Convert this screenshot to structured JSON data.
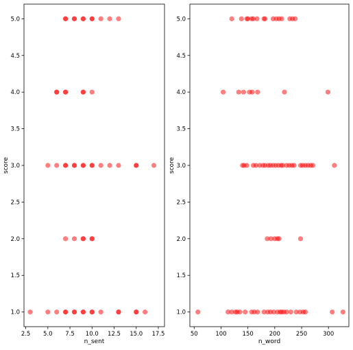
{
  "figure": {
    "background": "#ffffff",
    "marker_color": "#ff0000"
  },
  "chart_data": [
    {
      "type": "scatter",
      "title": "",
      "xlabel": "n_sent",
      "ylabel": "score",
      "xlim": [
        2.3,
        18.2
      ],
      "ylim": [
        0.8,
        5.2
      ],
      "xticks": [
        2.5,
        5.0,
        7.5,
        10.0,
        12.5,
        15.0,
        17.5
      ],
      "xtick_labels": [
        "2.5",
        "5.0",
        "7.5",
        "10.0",
        "12.5",
        "15.0",
        "17.5"
      ],
      "yticks": [
        1.0,
        1.5,
        2.0,
        2.5,
        3.0,
        3.5,
        4.0,
        4.5,
        5.0
      ],
      "ytick_labels": [
        "1.0",
        "1.5",
        "2.0",
        "2.5",
        "3.0",
        "3.5",
        "4.0",
        "4.5",
        "5.0"
      ],
      "grid": false,
      "marker_alpha": 0.5,
      "points": [
        {
          "x": 7,
          "y": 5
        },
        {
          "x": 7,
          "y": 5
        },
        {
          "x": 8,
          "y": 5
        },
        {
          "x": 8,
          "y": 5
        },
        {
          "x": 9,
          "y": 5
        },
        {
          "x": 9,
          "y": 5
        },
        {
          "x": 10,
          "y": 5
        },
        {
          "x": 10,
          "y": 5
        },
        {
          "x": 11,
          "y": 5
        },
        {
          "x": 12,
          "y": 5
        },
        {
          "x": 13,
          "y": 5
        },
        {
          "x": 6,
          "y": 4
        },
        {
          "x": 6,
          "y": 4
        },
        {
          "x": 7,
          "y": 4
        },
        {
          "x": 7,
          "y": 4
        },
        {
          "x": 9,
          "y": 4
        },
        {
          "x": 9,
          "y": 4
        },
        {
          "x": 10,
          "y": 4
        },
        {
          "x": 5,
          "y": 3
        },
        {
          "x": 6,
          "y": 3
        },
        {
          "x": 7,
          "y": 3
        },
        {
          "x": 7,
          "y": 3
        },
        {
          "x": 8,
          "y": 3
        },
        {
          "x": 8,
          "y": 3
        },
        {
          "x": 9,
          "y": 3
        },
        {
          "x": 9,
          "y": 3
        },
        {
          "x": 10,
          "y": 3
        },
        {
          "x": 10,
          "y": 3
        },
        {
          "x": 11,
          "y": 3
        },
        {
          "x": 12,
          "y": 3
        },
        {
          "x": 13,
          "y": 3
        },
        {
          "x": 15,
          "y": 3
        },
        {
          "x": 15,
          "y": 3
        },
        {
          "x": 17,
          "y": 3
        },
        {
          "x": 7,
          "y": 2
        },
        {
          "x": 8,
          "y": 2
        },
        {
          "x": 9,
          "y": 2
        },
        {
          "x": 9,
          "y": 2
        },
        {
          "x": 10,
          "y": 2
        },
        {
          "x": 10,
          "y": 2
        },
        {
          "x": 3,
          "y": 1
        },
        {
          "x": 5,
          "y": 1
        },
        {
          "x": 6,
          "y": 1
        },
        {
          "x": 7,
          "y": 1
        },
        {
          "x": 7,
          "y": 1
        },
        {
          "x": 8,
          "y": 1
        },
        {
          "x": 8,
          "y": 1
        },
        {
          "x": 9,
          "y": 1
        },
        {
          "x": 9,
          "y": 1
        },
        {
          "x": 10,
          "y": 1
        },
        {
          "x": 10,
          "y": 1
        },
        {
          "x": 11,
          "y": 1
        },
        {
          "x": 13,
          "y": 1
        },
        {
          "x": 13,
          "y": 1
        },
        {
          "x": 15,
          "y": 1
        },
        {
          "x": 15,
          "y": 1
        },
        {
          "x": 16,
          "y": 1
        }
      ]
    },
    {
      "type": "scatter",
      "title": "",
      "xlabel": "n_word",
      "ylabel": "score",
      "xlim": [
        42,
        338
      ],
      "ylim": [
        0.8,
        5.2
      ],
      "xticks": [
        50,
        100,
        150,
        200,
        250,
        300
      ],
      "xtick_labels": [
        "50",
        "100",
        "150",
        "200",
        "250",
        "300"
      ],
      "yticks": [
        1.0,
        1.5,
        2.0,
        2.5,
        3.0,
        3.5,
        4.0,
        4.5,
        5.0
      ],
      "ytick_labels": [
        "1.0",
        "1.5",
        "2.0",
        "2.5",
        "3.0",
        "3.5",
        "4.0",
        "4.5",
        "5.0"
      ],
      "grid": false,
      "marker_alpha": 0.5,
      "points": [
        {
          "x": 120,
          "y": 5
        },
        {
          "x": 138,
          "y": 5
        },
        {
          "x": 148,
          "y": 5
        },
        {
          "x": 150,
          "y": 5
        },
        {
          "x": 157,
          "y": 5
        },
        {
          "x": 160,
          "y": 5
        },
        {
          "x": 167,
          "y": 5
        },
        {
          "x": 180,
          "y": 5
        },
        {
          "x": 182,
          "y": 5
        },
        {
          "x": 197,
          "y": 5
        },
        {
          "x": 203,
          "y": 5
        },
        {
          "x": 208,
          "y": 5
        },
        {
          "x": 213,
          "y": 5
        },
        {
          "x": 228,
          "y": 5
        },
        {
          "x": 233,
          "y": 5
        },
        {
          "x": 238,
          "y": 5
        },
        {
          "x": 104,
          "y": 4
        },
        {
          "x": 133,
          "y": 4
        },
        {
          "x": 142,
          "y": 4
        },
        {
          "x": 153,
          "y": 4
        },
        {
          "x": 158,
          "y": 4
        },
        {
          "x": 168,
          "y": 4
        },
        {
          "x": 218,
          "y": 4
        },
        {
          "x": 299,
          "y": 4
        },
        {
          "x": 140,
          "y": 3
        },
        {
          "x": 143,
          "y": 3
        },
        {
          "x": 148,
          "y": 3
        },
        {
          "x": 160,
          "y": 3
        },
        {
          "x": 165,
          "y": 3
        },
        {
          "x": 172,
          "y": 3
        },
        {
          "x": 178,
          "y": 3
        },
        {
          "x": 182,
          "y": 3
        },
        {
          "x": 188,
          "y": 3
        },
        {
          "x": 192,
          "y": 3
        },
        {
          "x": 197,
          "y": 3
        },
        {
          "x": 202,
          "y": 3
        },
        {
          "x": 207,
          "y": 3
        },
        {
          "x": 212,
          "y": 3
        },
        {
          "x": 215,
          "y": 3
        },
        {
          "x": 222,
          "y": 3
        },
        {
          "x": 227,
          "y": 3
        },
        {
          "x": 232,
          "y": 3
        },
        {
          "x": 236,
          "y": 3
        },
        {
          "x": 248,
          "y": 3
        },
        {
          "x": 252,
          "y": 3
        },
        {
          "x": 257,
          "y": 3
        },
        {
          "x": 262,
          "y": 3
        },
        {
          "x": 267,
          "y": 3
        },
        {
          "x": 271,
          "y": 3
        },
        {
          "x": 311,
          "y": 3
        },
        {
          "x": 186,
          "y": 2
        },
        {
          "x": 193,
          "y": 2
        },
        {
          "x": 200,
          "y": 2
        },
        {
          "x": 205,
          "y": 2
        },
        {
          "x": 208,
          "y": 2
        },
        {
          "x": 248,
          "y": 2
        },
        {
          "x": 57,
          "y": 1
        },
        {
          "x": 113,
          "y": 1
        },
        {
          "x": 120,
          "y": 1
        },
        {
          "x": 127,
          "y": 1
        },
        {
          "x": 130,
          "y": 1
        },
        {
          "x": 135,
          "y": 1
        },
        {
          "x": 145,
          "y": 1
        },
        {
          "x": 157,
          "y": 1
        },
        {
          "x": 162,
          "y": 1
        },
        {
          "x": 168,
          "y": 1
        },
        {
          "x": 180,
          "y": 1
        },
        {
          "x": 187,
          "y": 1
        },
        {
          "x": 192,
          "y": 1
        },
        {
          "x": 198,
          "y": 1
        },
        {
          "x": 205,
          "y": 1
        },
        {
          "x": 210,
          "y": 1
        },
        {
          "x": 213,
          "y": 1
        },
        {
          "x": 217,
          "y": 1
        },
        {
          "x": 222,
          "y": 1
        },
        {
          "x": 230,
          "y": 1
        },
        {
          "x": 240,
          "y": 1
        },
        {
          "x": 247,
          "y": 1
        },
        {
          "x": 253,
          "y": 1
        },
        {
          "x": 257,
          "y": 1
        },
        {
          "x": 307,
          "y": 1
        },
        {
          "x": 327,
          "y": 1
        }
      ]
    }
  ]
}
